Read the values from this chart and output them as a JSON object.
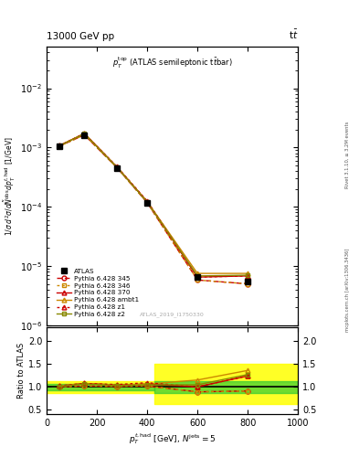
{
  "title_top": "13000 GeV pp",
  "title_right": "t$\\bar{t}$",
  "plot_title": "$p_T^{\\mathrm{top}}$ (ATLAS semileptonic t$\\bar{t}$bar)",
  "xlabel": "$p_T^{t,\\mathrm{had}}$ [GeV], $N^{\\mathrm{jets}} = 5$",
  "ylabel_main": "$1/\\sigma\\, d^2\\sigma / d\\tilde{N}^{\\mathrm{obs}} dp_T^{t,\\mathrm{had}}$ [1/GeV]",
  "ylabel_ratio": "Ratio to ATLAS",
  "watermark": "ATLAS_2019_I1750330",
  "rivet_text": "Rivet 3.1.10, ≥ 3.2M events",
  "mcplots_text": "mcplots.cern.ch [arXiv:1306.3436]",
  "x_data": [
    50,
    150,
    280,
    400,
    600,
    800
  ],
  "atlas_y": [
    0.00105,
    0.0016,
    0.00045,
    0.000115,
    6.5e-06,
    5.5e-06
  ],
  "py345_y": [
    0.00105,
    0.00163,
    0.000455,
    0.000117,
    5.8e-06,
    5e-06
  ],
  "py346_y": [
    0.00105,
    0.00163,
    0.000455,
    0.000117,
    5.8e-06,
    5e-06
  ],
  "py370_y": [
    0.00107,
    0.00172,
    0.000468,
    0.000122,
    6.5e-06,
    6.8e-06
  ],
  "pyambt1_y": [
    0.00107,
    0.00172,
    0.000468,
    0.000122,
    7.5e-06,
    7.5e-06
  ],
  "pyz1_y": [
    0.00107,
    0.00172,
    0.000472,
    0.000125,
    6.5e-06,
    6.8e-06
  ],
  "pyz2_y": [
    0.00106,
    0.0017,
    0.000462,
    0.00012,
    6.8e-06,
    7e-06
  ],
  "ratio_x": [
    50,
    150,
    280,
    400,
    600,
    800
  ],
  "ratio_py345": [
    1.0,
    1.02,
    1.01,
    1.02,
    0.89,
    0.91
  ],
  "ratio_py346": [
    1.0,
    1.02,
    1.01,
    1.02,
    0.89,
    0.91
  ],
  "ratio_py370": [
    1.02,
    1.075,
    1.04,
    1.06,
    1.0,
    1.24
  ],
  "ratio_pyambt1": [
    1.02,
    1.075,
    1.04,
    1.06,
    1.15,
    1.36
  ],
  "ratio_pyz1": [
    1.02,
    1.075,
    1.05,
    1.09,
    1.0,
    1.24
  ],
  "ratio_pyz2": [
    1.01,
    1.063,
    1.027,
    1.043,
    1.045,
    1.27
  ],
  "yellow_left_xmin": 0,
  "yellow_left_xmax": 430,
  "yellow_left_ymin": 0.87,
  "yellow_left_ymax": 1.13,
  "green_left_xmin": 0,
  "green_left_xmax": 430,
  "green_left_ymin": 0.93,
  "green_left_ymax": 1.07,
  "yellow_right_xmin": 430,
  "yellow_right_xmax": 1000,
  "yellow_right_ymin": 0.62,
  "yellow_right_ymax": 1.5,
  "green_right_xmin": 430,
  "green_right_xmax": 1000,
  "green_right_ymin": 0.87,
  "green_right_ymax": 1.13,
  "xlim": [
    0,
    1000
  ],
  "ylim_main": [
    1e-06,
    0.05
  ],
  "ylim_ratio": [
    0.4,
    2.3
  ],
  "yticks_ratio": [
    0.5,
    1.0,
    1.5,
    2.0
  ],
  "color_atlas": "#000000",
  "color_py345": "#cc0000",
  "color_py346": "#cc8800",
  "color_py370": "#cc0000",
  "color_pyambt1": "#cc8800",
  "color_pyz1": "#cc0000",
  "color_pyz2": "#888800"
}
